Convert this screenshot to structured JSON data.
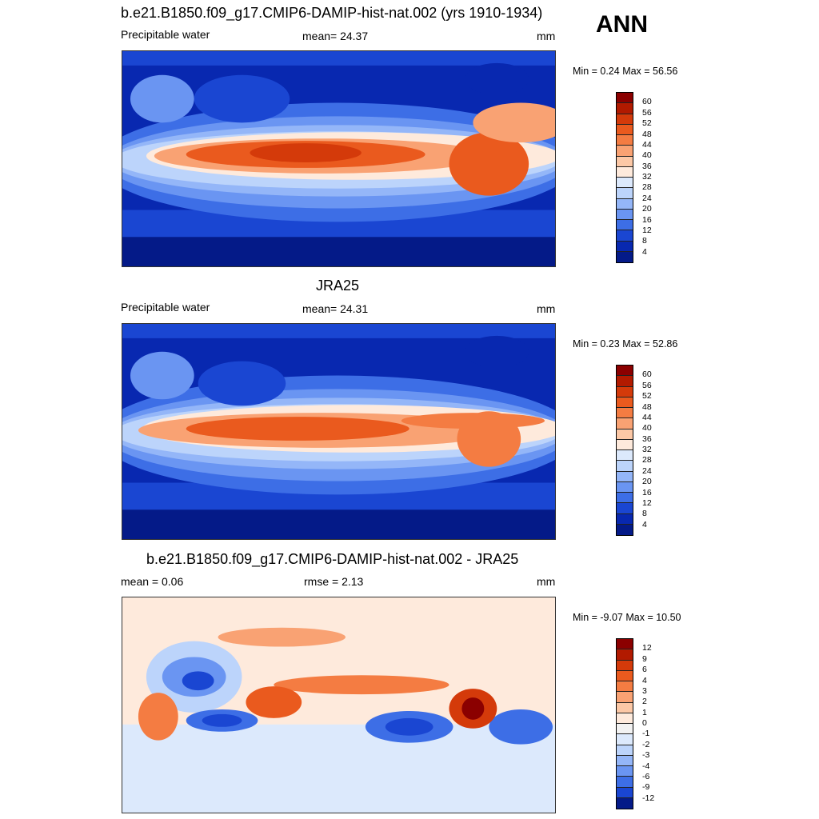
{
  "season": "ANN",
  "panels": [
    {
      "title": "b.e21.B1850.f09_g17.CMIP6-DAMIP-hist-nat.002 (yrs 1910-1934)",
      "left": "Precipitable water",
      "center": "mean=  24.37",
      "right": "mm",
      "minmax": "Min =   0.24 Max =  56.56",
      "colorbar_labels": [
        "60",
        "56",
        "52",
        "48",
        "44",
        "40",
        "36",
        "32",
        "28",
        "24",
        "20",
        "16",
        "12",
        "8",
        "4"
      ],
      "colors": [
        "#8b0000",
        "#b21a00",
        "#d43a0a",
        "#ea5a1e",
        "#f47c42",
        "#f9a273",
        "#fcc8a6",
        "#feeadc",
        "#dce9fc",
        "#bcd4fb",
        "#94b6f8",
        "#6a95f2",
        "#3d6ee6",
        "#1a46d2",
        "#0828b0",
        "#041a88"
      ]
    },
    {
      "title": "JRA25",
      "left": "Precipitable water",
      "center": "mean=  24.31",
      "right": "mm",
      "minmax": "Min =   0.23 Max =  52.86",
      "colorbar_labels": [
        "60",
        "56",
        "52",
        "48",
        "44",
        "40",
        "36",
        "32",
        "28",
        "24",
        "20",
        "16",
        "12",
        "8",
        "4"
      ],
      "colors": [
        "#8b0000",
        "#b21a00",
        "#d43a0a",
        "#ea5a1e",
        "#f47c42",
        "#f9a273",
        "#fcc8a6",
        "#feeadc",
        "#dce9fc",
        "#bcd4fb",
        "#94b6f8",
        "#6a95f2",
        "#3d6ee6",
        "#1a46d2",
        "#0828b0",
        "#041a88"
      ]
    },
    {
      "title": "b.e21.B1850.f09_g17.CMIP6-DAMIP-hist-nat.002 - JRA25",
      "left": "mean =   0.06",
      "center": "rmse =   2.13",
      "right": "mm",
      "minmax": "Min =  -9.07 Max =  10.50",
      "colorbar_labels": [
        "12",
        "9",
        "6",
        "4",
        "3",
        "2",
        "1",
        "0",
        "-1",
        "-2",
        "-3",
        "-4",
        "-6",
        "-9",
        "-12"
      ],
      "colors": [
        "#8b0000",
        "#b21a00",
        "#d43a0a",
        "#ea5a1e",
        "#f47c42",
        "#f9a273",
        "#fcc8a6",
        "#feeadc",
        "#f2f2f2",
        "#dce9fc",
        "#bcd4fb",
        "#94b6f8",
        "#6a95f2",
        "#3d6ee6",
        "#1a46d2",
        "#041a88"
      ]
    }
  ]
}
